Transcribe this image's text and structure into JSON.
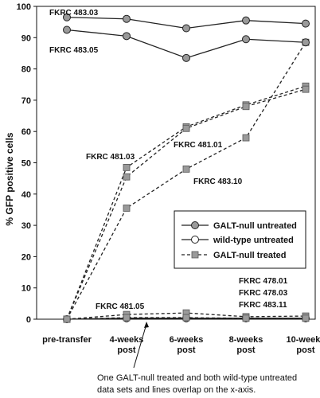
{
  "chart_data": {
    "type": "line",
    "ylabel": "% GFP positive cells",
    "ylim": [
      0,
      100
    ],
    "yticks": [
      0,
      10,
      20,
      30,
      40,
      50,
      60,
      70,
      80,
      90,
      100
    ],
    "grid": false,
    "legend_placement": "right-middle",
    "categories": [
      "pre-transfer",
      "4-weeks post",
      "6-weeks post",
      "8-weeks post",
      "10-weeks post"
    ],
    "category_lines": [
      [
        "pre-transfer"
      ],
      [
        "4-weeks",
        "post"
      ],
      [
        "6-weeks",
        "post"
      ],
      [
        "8-weeks",
        "post"
      ],
      [
        "10-weeks",
        "post"
      ]
    ],
    "legend": [
      {
        "key": "galt_untreated",
        "label": "GALT-null untreated"
      },
      {
        "key": "wt_untreated",
        "label": "wild-type untreated"
      },
      {
        "key": "galt_treated",
        "label": "GALT-null treated"
      }
    ],
    "series": [
      {
        "name": "FKRC 483.03",
        "group": "galt_untreated",
        "values": [
          96.5,
          96,
          93,
          95.5,
          94.5
        ]
      },
      {
        "name": "FKRC 483.05",
        "group": "galt_untreated",
        "values": [
          92.5,
          90.5,
          83.5,
          89.5,
          88.5
        ]
      },
      {
        "name": "FKRC 481.03",
        "group": "galt_treated",
        "values": [
          0,
          48.5,
          61.5,
          68.5,
          74.5
        ]
      },
      {
        "name": "",
        "group": "galt_treated",
        "values": [
          0,
          45.5,
          61,
          68,
          73.5
        ]
      },
      {
        "name": "FKRC 481.01",
        "group": "galt_treated",
        "values": [
          0,
          35.5,
          48,
          58,
          88.5
        ]
      },
      {
        "name": "FKRC 481.05",
        "group": "galt_treated",
        "values": [
          0,
          1.5,
          2,
          0.8,
          1
        ]
      },
      {
        "name": "",
        "group": "galt_treated",
        "values": [
          0,
          0.5,
          0.5,
          0.3,
          0.3
        ]
      },
      {
        "name": "",
        "group": "wt_untreated",
        "values": [
          0,
          0.3,
          0.3,
          0.3,
          0.3
        ]
      }
    ],
    "annotations": [
      {
        "text": "FKRC 483.03"
      },
      {
        "text": "FKRC 483.05"
      },
      {
        "text": "FKRC 481.03"
      },
      {
        "text": "FKRC 481.01"
      },
      {
        "text": "FKRC 483.10"
      },
      {
        "text": "FKRC 481.05"
      },
      {
        "text": "FKRC 478.01"
      },
      {
        "text": "FKRC 478.03"
      },
      {
        "text": "FKRC 483.11"
      }
    ],
    "footnote": [
      "One GALT-null treated and both wild-type untreated",
      "data sets and lines overlap on the x-axis."
    ]
  }
}
